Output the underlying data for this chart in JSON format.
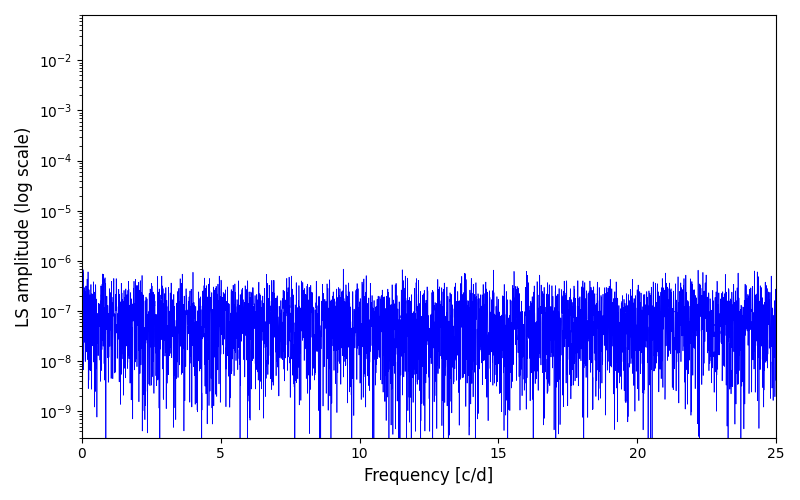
{
  "xlabel": "Frequency [c/d]",
  "ylabel": "LS amplitude (log scale)",
  "xlim": [
    0,
    25
  ],
  "ylim": [
    3e-10,
    0.08
  ],
  "line_color": "#0000ff",
  "line_width": 0.5,
  "figsize": [
    8.0,
    5.0
  ],
  "dpi": 100,
  "seed": 7,
  "freq_max": 25.0,
  "background_color": "#ffffff"
}
